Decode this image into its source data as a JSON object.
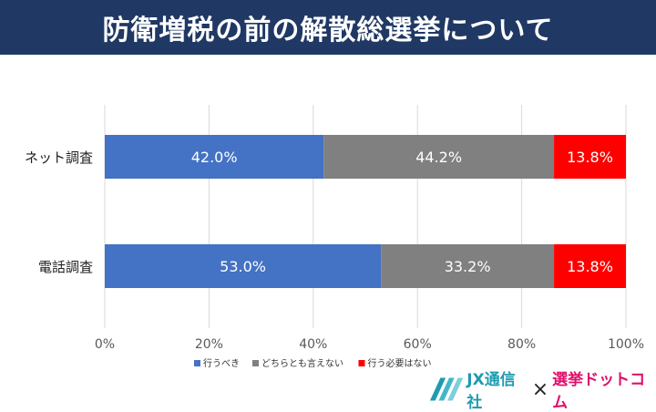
{
  "header": {
    "title": "防衛増税の前の解散総選挙について"
  },
  "chart_data": {
    "type": "bar",
    "orientation": "horizontal",
    "stacked": true,
    "categories": [
      "ネット調査",
      "電話調査"
    ],
    "series": [
      {
        "name": "行うべき",
        "color": "#4472c4",
        "values": [
          42.0,
          53.0
        ]
      },
      {
        "name": "どちらとも言えない",
        "color": "#808080",
        "values": [
          44.2,
          33.2
        ]
      },
      {
        "name": "行う必要はない",
        "color": "#ff0000",
        "values": [
          13.8,
          13.8
        ]
      }
    ],
    "data_labels": [
      [
        "42.0%",
        "44.2%",
        "13.8%"
      ],
      [
        "53.0%",
        "33.2%",
        "13.8%"
      ]
    ],
    "xlim": [
      0,
      100
    ],
    "xticks": [
      "0%",
      "20%",
      "40%",
      "60%",
      "80%",
      "100%"
    ],
    "grid": true,
    "legend_position": "bottom"
  },
  "footer": {
    "brand_primary": "JX通信社",
    "separator": "×",
    "brand_secondary": "選挙ドットコム",
    "logo_color": "#1f9bb0",
    "brand_secondary_color": "#e0106b"
  }
}
